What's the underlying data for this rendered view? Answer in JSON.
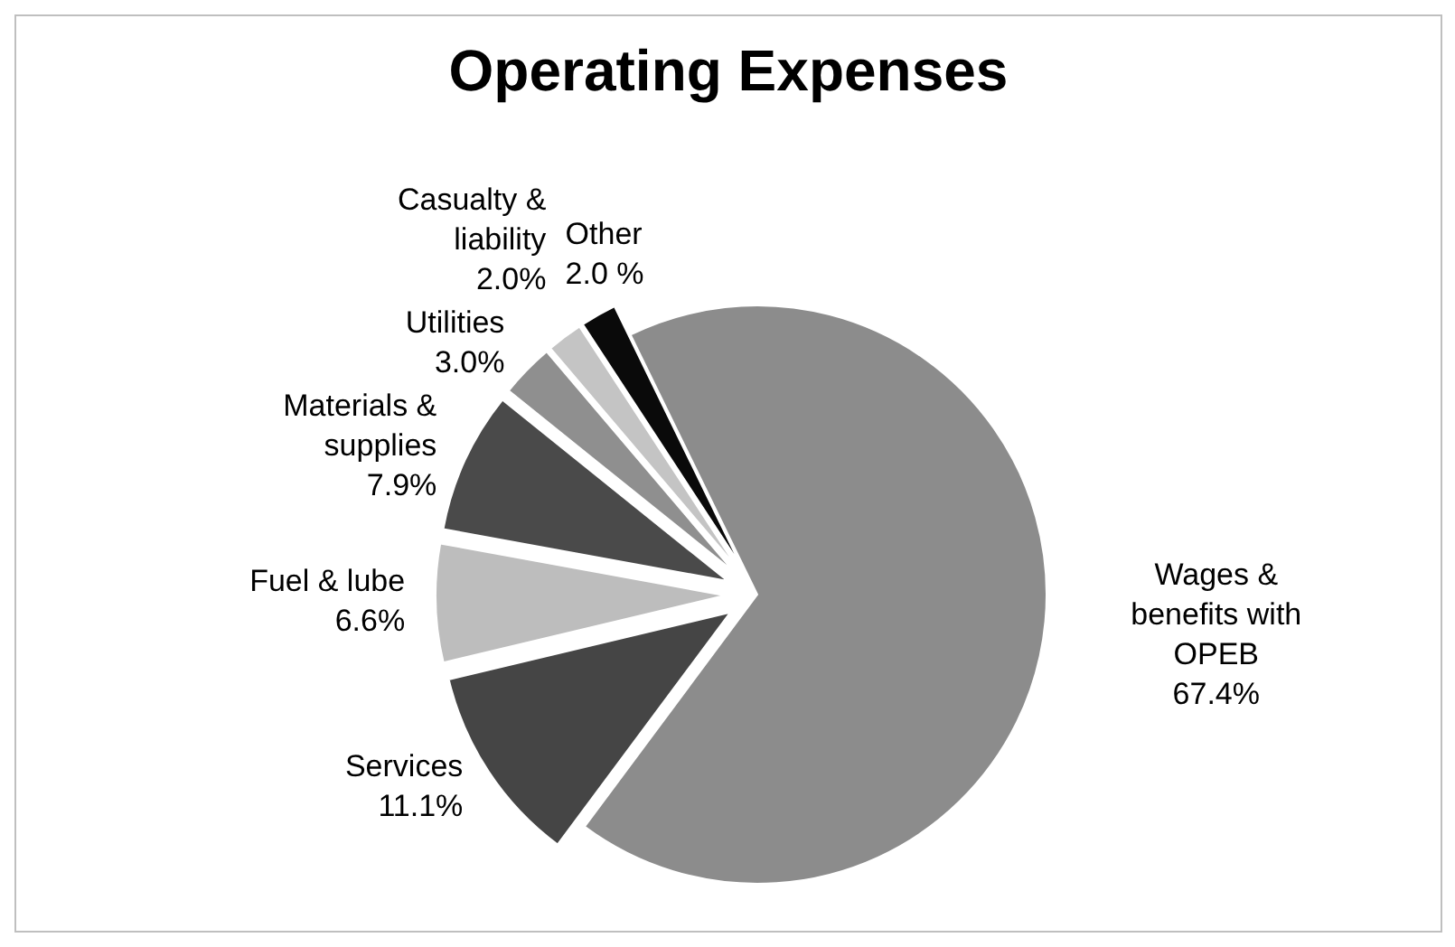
{
  "chart_data": {
    "type": "pie",
    "title": "Operating Expenses",
    "categories": [
      "Wages & benefits with OPEB",
      "Services",
      "Fuel & lube",
      "Materials & supplies",
      "Utilities",
      "Casualty & liability",
      "Other"
    ],
    "values": [
      67.4,
      11.1,
      6.6,
      7.9,
      3.0,
      2.0,
      2.0
    ],
    "value_labels": [
      "67.4%",
      "11.1%",
      "6.6%",
      "7.9%",
      "3.0%",
      "2.0%",
      "2.0 %"
    ],
    "colors": [
      "#8c8c8c",
      "#454545",
      "#bdbdbd",
      "#4a4a4a",
      "#8f8f8f",
      "#c4c4c4",
      "#0a0a0a"
    ],
    "legend": false
  }
}
